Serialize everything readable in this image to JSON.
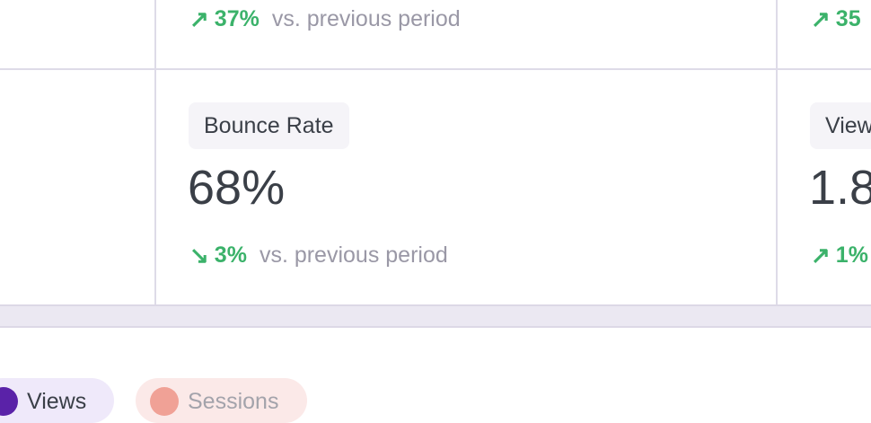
{
  "cards": [
    {
      "change": "37%",
      "direction": "up",
      "compare": "vs. previous period"
    },
    {
      "change": "35",
      "direction": "up"
    },
    {
      "label": "Bounce Rate",
      "value": "68%",
      "change": "3%",
      "direction": "down",
      "compare": "vs. previous period"
    },
    {
      "label": "View",
      "value": "1.8",
      "change": "1%",
      "direction": "up"
    }
  ],
  "legend": [
    {
      "label": "Views",
      "color": "#5a22a8",
      "bg": "#efe9fa"
    },
    {
      "label": "Sessions",
      "color": "#f0a196",
      "bg": "#fbe9e8"
    }
  ],
  "colors": {
    "positive": "#3bb26a",
    "muted": "#9a98a6"
  }
}
